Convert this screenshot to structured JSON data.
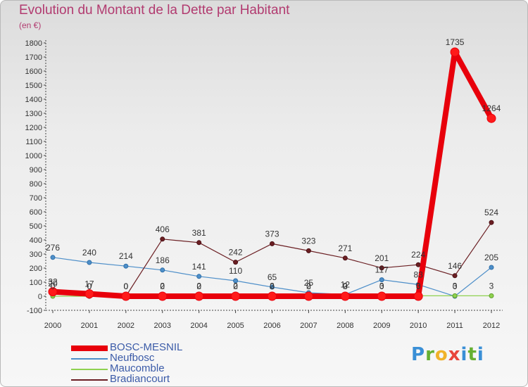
{
  "title": "Evolution du Montant de la Dette par Habitant",
  "subtitle": "(en €)",
  "logo_text": "Proxiti",
  "chart_data": {
    "type": "line",
    "title": "Evolution du Montant de la Dette par Habitant",
    "subtitle": "(en €)",
    "xlabel": "",
    "ylabel": "",
    "x": [
      "2000",
      "2001",
      "2002",
      "2003",
      "2004",
      "2005",
      "2006",
      "2007",
      "2008",
      "2009",
      "2010",
      "2011",
      "2012"
    ],
    "ylim": [
      -100,
      1800
    ],
    "yticks": [
      -100,
      0,
      100,
      200,
      300,
      400,
      500,
      600,
      700,
      800,
      900,
      1000,
      1100,
      1200,
      1300,
      1400,
      1500,
      1600,
      1700,
      1800
    ],
    "grid": false,
    "legend_position": "bottom-left",
    "series": [
      {
        "name": "BOSC-MESNIL",
        "color": "#e8000b",
        "values": [
          32,
          17,
          0,
          0,
          0,
          0,
          0,
          0,
          0,
          0,
          0,
          1735,
          1264
        ]
      },
      {
        "name": "Neufbosc",
        "color": "#4e8fc9",
        "values": [
          276,
          240,
          214,
          186,
          141,
          110,
          65,
          25,
          12,
          117,
          83,
          0,
          205
        ]
      },
      {
        "name": "Maucomble",
        "color": "#8fd14f",
        "values": [
          0,
          0,
          0,
          2,
          2,
          2,
          2,
          2,
          2,
          3,
          3,
          3,
          3
        ]
      },
      {
        "name": "Bradiancourt",
        "color": "#6b1f23",
        "values": [
          20,
          0,
          0,
          406,
          381,
          242,
          373,
          323,
          271,
          201,
          224,
          146,
          524
        ]
      }
    ]
  }
}
